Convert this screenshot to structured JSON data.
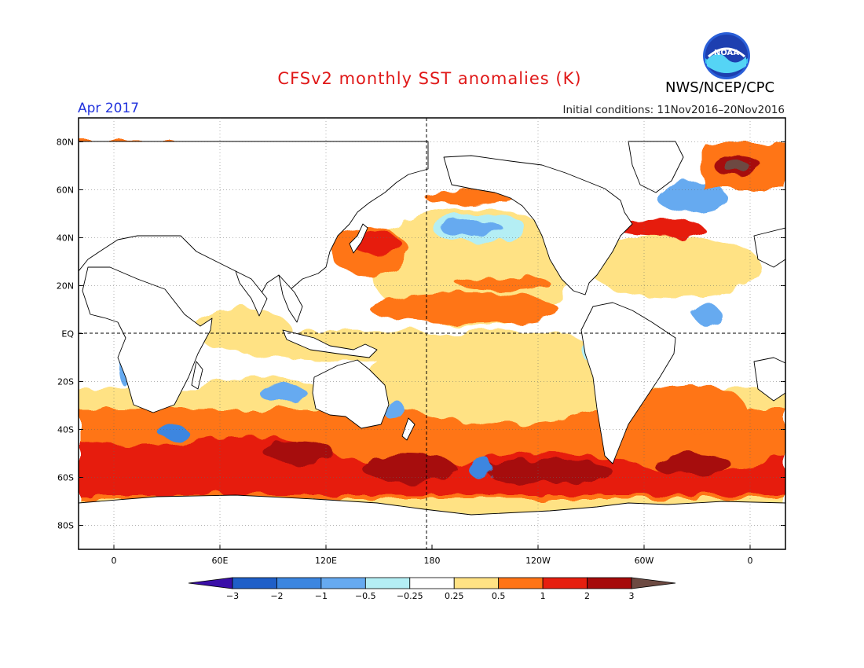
{
  "header": {
    "title": "CFSv2 monthly SST anomalies (K)",
    "organization": "NWS/NCEP/CPC",
    "logo_text": "NOAA",
    "forecast_month": "Apr 2017",
    "initial_conditions": "Initial conditions: 11Nov2016–20Nov2016"
  },
  "map": {
    "projection": "cylindrical equidistant",
    "lon_range": [
      -20,
      380
    ],
    "lat_range": [
      -90,
      90
    ],
    "lat_ticks": [
      {
        "lat": 80,
        "label": "80N"
      },
      {
        "lat": 60,
        "label": "60N"
      },
      {
        "lat": 40,
        "label": "40N"
      },
      {
        "lat": 20,
        "label": "20N"
      },
      {
        "lat": 0,
        "label": "EQ"
      },
      {
        "lat": -20,
        "label": "20S"
      },
      {
        "lat": -40,
        "label": "40S"
      },
      {
        "lat": -60,
        "label": "60S"
      },
      {
        "lat": -80,
        "label": "80S"
      }
    ],
    "lon_ticks": [
      {
        "lon": 0,
        "label": "0"
      },
      {
        "lon": 60,
        "label": "60E"
      },
      {
        "lon": 120,
        "label": "120E"
      },
      {
        "lon": 180,
        "label": "180"
      },
      {
        "lon": 240,
        "label": "120W"
      },
      {
        "lon": 300,
        "label": "60W"
      },
      {
        "lon": 360,
        "label": "0"
      }
    ],
    "reference_lines": [
      "equator dashed",
      "dateline dashed"
    ],
    "land_color": "#ffffff",
    "coast_color": "#000000"
  },
  "colorbar": {
    "label_values": [
      "−3",
      "−2",
      "−1",
      "−0.5",
      "−0.25",
      "0.25",
      "0.5",
      "1",
      "2",
      "3"
    ],
    "colors": [
      "#3a0fa8",
      "#1f5fc8",
      "#3c86e0",
      "#66aaf0",
      "#b4eef4",
      "#ffffff",
      "#ffe284",
      "#ff7416",
      "#e61f0f",
      "#a60b0b",
      "#6d4a42"
    ]
  },
  "anomaly_regions": [
    {
      "name": "north-pacific-cool-pool",
      "level": "-1",
      "lon_range": [
        190,
        230
      ],
      "lat_range": [
        36,
        45
      ]
    },
    {
      "name": "north-pacific-warm-band",
      "level": "0.5",
      "lon_range": [
        165,
        280
      ],
      "lat_range": [
        8,
        35
      ]
    },
    {
      "name": "kuroshio-warm",
      "level": "2",
      "lon_range": [
        130,
        165
      ],
      "lat_range": [
        30,
        44
      ]
    },
    {
      "name": "gulf-stream-warm",
      "level": "2",
      "lon_range": [
        295,
        320
      ],
      "lat_range": [
        35,
        48
      ]
    },
    {
      "name": "barents-sea-warm",
      "level": "3+",
      "lon_range": [
        5,
        25
      ],
      "lat_range": [
        68,
        76
      ]
    },
    {
      "name": "southern-ocean-warm-belt",
      "level": "1 to 3",
      "lon_range": [
        0,
        360
      ],
      "lat_range": [
        -70,
        -30
      ]
    },
    {
      "name": "south-pacific-cool-patch",
      "level": "-1",
      "lon_range": [
        200,
        215
      ],
      "lat_range": [
        -62,
        -52
      ]
    },
    {
      "name": "benguela-cool",
      "level": "-0.5",
      "lon_range": [
        5,
        15
      ],
      "lat_range": [
        -35,
        -15
      ]
    },
    {
      "name": "west-australia-cool",
      "level": "-1",
      "lon_range": [
        95,
        115
      ],
      "lat_range": [
        -40,
        -20
      ]
    }
  ]
}
